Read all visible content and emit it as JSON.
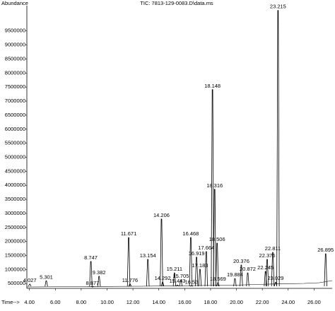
{
  "chart_data": {
    "type": "chromatogram",
    "title": "TIC: 7813-129-0083.D\\data.ms",
    "y_label": "Abundance",
    "x_label": "Time-->",
    "color": "#000000",
    "x": [
      4.027,
      5.301,
      8.747,
      8.877,
      9.382,
      11.671,
      11.776,
      13.154,
      14.206,
      14.292,
      15.211,
      15.443,
      15.705,
      16.468,
      16.53,
      16.919,
      17.183,
      17.664,
      18.148,
      18.316,
      18.506,
      18.569,
      19.884,
      20.376,
      20.872,
      22.245,
      22.376,
      22.811,
      23.029,
      23.215,
      26.895
    ],
    "values": [
      480000,
      600000,
      1290000,
      380000,
      760000,
      2140000,
      480000,
      1360000,
      2800000,
      550000,
      880000,
      450000,
      630000,
      2140000,
      420000,
      1440000,
      1010000,
      1640000,
      7410000,
      3860000,
      1940000,
      530000,
      680000,
      1160000,
      880000,
      930000,
      1360000,
      1610000,
      550000,
      10230000,
      1560000
    ],
    "xlim": [
      3.8,
      27.4
    ],
    "xticks": [
      {
        "value": 4,
        "label": "4.00"
      },
      {
        "value": 6,
        "label": "6.00"
      },
      {
        "value": 8,
        "label": "8.00"
      },
      {
        "value": 10,
        "label": "10.00"
      },
      {
        "value": 12,
        "label": "12.00"
      },
      {
        "value": 14,
        "label": "14.00"
      },
      {
        "value": 16,
        "label": "16.00"
      },
      {
        "value": 18,
        "label": "18.00"
      },
      {
        "value": 20,
        "label": "20.00"
      },
      {
        "value": 22,
        "label": "22.00"
      },
      {
        "value": 24,
        "label": "24.00"
      },
      {
        "value": 26,
        "label": "26.00"
      }
    ],
    "ylim": [
      330000,
      10400000
    ],
    "yticks": [
      500000,
      1000000,
      1500000,
      2000000,
      2500000,
      3000000,
      3500000,
      4000000,
      4500000,
      5000000,
      5500000,
      6000000,
      6500000,
      7000000,
      7500000,
      8000000,
      8500000,
      9000000,
      9500000
    ]
  }
}
